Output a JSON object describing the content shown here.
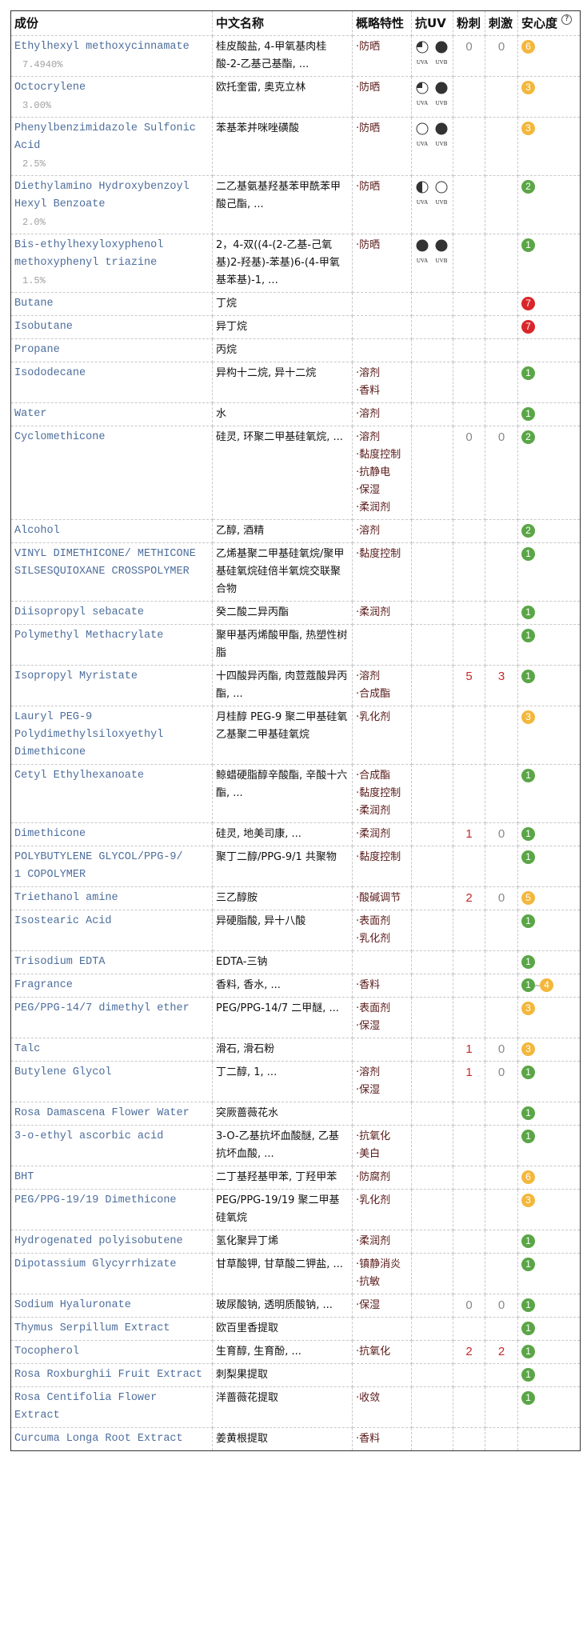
{
  "headers": {
    "ingredient": "成份",
    "cn_name": "中文名称",
    "properties": "概略特性",
    "uv": "抗UV",
    "acne": "粉刺",
    "irritation": "刺激",
    "safety": "安心度",
    "help": "?"
  },
  "uv_labels": {
    "uva": "UVA",
    "uvb": "UVB"
  },
  "colors": {
    "safe_green": "#5aa646",
    "moderate_yellow": "#f3b73d",
    "high_red": "#d9262a",
    "ingredient_blue": "#4d6e9c",
    "property_brown": "#5a1a1a",
    "irritant_red": "#c8282d"
  },
  "rows": [
    {
      "name": "Ethylhexyl methoxycinnamate",
      "pct": "7.4940%",
      "cn": "桂皮酸盐, 4-甲氧基肉桂酸-2-乙基己基酯, ...",
      "props": [
        "防晒"
      ],
      "uva": "quarter",
      "uvb": "full",
      "acne": "0",
      "irr": "0",
      "safety": "6"
    },
    {
      "name": "Octocrylene",
      "pct": "3.00%",
      "cn": "欧托奎雷, 奥克立林",
      "props": [
        "防晒"
      ],
      "uva": "quarter",
      "uvb": "full",
      "safety": "3"
    },
    {
      "name": "Phenylbenzimidazole Sulfonic Acid",
      "pct": "2.5%",
      "cn": "苯基苯并咪唑磺酸",
      "props": [
        "防晒"
      ],
      "uva": "empty",
      "uvb": "full",
      "safety": "3"
    },
    {
      "name": "Diethylamino Hydroxybenzoyl Hexyl Benzoate",
      "pct": "2.0%",
      "cn": "二乙基氨基羟基苯甲酰苯甲酸己酯, ...",
      "props": [
        "防晒"
      ],
      "uva": "half",
      "uvb": "empty",
      "safety": "2"
    },
    {
      "name": "Bis-ethylhexyloxyphenol methoxyphenyl triazine",
      "pct": "1.5%",
      "cn": "2，4-双((4-(2-乙基-己氧基)2-羟基)-苯基)6-(4-甲氧基苯基)-1, ...",
      "props": [
        "防晒"
      ],
      "uva": "full",
      "uvb": "full",
      "safety": "1"
    },
    {
      "name": "Butane",
      "cn": "丁烷",
      "props": [],
      "safety": "7"
    },
    {
      "name": "Isobutane",
      "cn": "异丁烷",
      "props": [],
      "safety": "7"
    },
    {
      "name": "Propane",
      "cn": "丙烷",
      "props": []
    },
    {
      "name": "Isododecane",
      "cn": "异构十二烷, 异十二烷",
      "props": [
        "溶剂",
        "香料"
      ],
      "safety": "1"
    },
    {
      "name": "Water",
      "cn": "水",
      "props": [
        "溶剂"
      ],
      "safety": "1"
    },
    {
      "name": "Cyclomethicone",
      "cn": "硅灵, 环聚二甲基硅氧烷, ...",
      "props": [
        "溶剂",
        "黏度控制",
        "抗静电",
        "保湿",
        "柔润剂"
      ],
      "acne": "0",
      "irr": "0",
      "safety": "2"
    },
    {
      "name": "Alcohol",
      "cn": "乙醇, 酒精",
      "props": [
        "溶剂"
      ],
      "safety": "2"
    },
    {
      "name": "VINYL DIMETHICONE/ METHICONE SILSESQUIOXANE CROSSPOLYMER",
      "cn": "乙烯基聚二甲基硅氧烷/聚甲基硅氧烷硅倍半氧烷交联聚合物",
      "props": [
        "黏度控制"
      ],
      "safety": "1"
    },
    {
      "name": "Diisopropyl sebacate",
      "cn": "癸二酸二异丙酯",
      "props": [
        "柔润剂"
      ],
      "safety": "1"
    },
    {
      "name": "Polymethyl Methacrylate",
      "cn": "聚甲基丙烯酸甲酯, 热塑性树脂",
      "props": [],
      "safety": "1"
    },
    {
      "name": "Isopropyl Myristate",
      "cn": "十四酸异丙酯, 肉荳蔻酸异丙酯, ...",
      "props": [
        "溶剂",
        "合成酯"
      ],
      "acne": "5",
      "irr": "3",
      "safety": "1"
    },
    {
      "name": "Lauryl PEG-9 Polydimethylsiloxyethyl Dimethicone",
      "cn": "月桂醇 PEG-9 聚二甲基硅氧乙基聚二甲基硅氧烷",
      "props": [
        "乳化剂"
      ],
      "safety": "3"
    },
    {
      "name": "Cetyl Ethylhexanoate",
      "cn": "鲸蜡硬脂醇辛酸酯, 辛酸十六酯, ...",
      "props": [
        "合成酯",
        "黏度控制",
        "柔润剂"
      ],
      "safety": "1"
    },
    {
      "name": "Dimethicone",
      "cn": "硅灵, 地美司康, ...",
      "props": [
        "柔润剂"
      ],
      "acne": "1",
      "irr": "0",
      "safety": "1"
    },
    {
      "name": "POLYBUTYLENE GLYCOL/PPG-9/\n1 COPOLYMER",
      "cn": "聚丁二醇/PPG-9/1 共聚物",
      "props": [
        "黏度控制"
      ],
      "safety": "1"
    },
    {
      "name": "Triethanol amine",
      "cn": "三乙醇胺",
      "props": [
        "酸碱调节"
      ],
      "acne": "2",
      "irr": "0",
      "safety": "5"
    },
    {
      "name": "Isostearic Acid",
      "cn": "异硬脂酸, 异十八酸",
      "props": [
        "表面剂",
        "乳化剂"
      ],
      "safety": "1"
    },
    {
      "name": "Trisodium EDTA",
      "cn": "EDTA-三钠",
      "props": [],
      "safety": "1"
    },
    {
      "name": "Fragrance",
      "cn": "香料, 香水, ...",
      "props": [
        "香料"
      ],
      "safety": "1",
      "safety_max": "4",
      "range_sep": "~"
    },
    {
      "name": "PEG/PPG-14/7 dimethyl ether",
      "cn": "PEG/PPG-14/7 二甲醚, ...",
      "props": [
        "表面剂",
        "保湿"
      ],
      "safety": "3"
    },
    {
      "name": "Talc",
      "cn": "滑石, 滑石粉",
      "props": [],
      "acne": "1",
      "irr": "0",
      "safety": "3"
    },
    {
      "name": "Butylene Glycol",
      "cn": "丁二醇, 1, ...",
      "props": [
        "溶剂",
        "保湿"
      ],
      "acne": "1",
      "irr": "0",
      "safety": "1"
    },
    {
      "name": "Rosa Damascena Flower Water",
      "cn": "突厥蔷薇花水",
      "props": [],
      "safety": "1"
    },
    {
      "name": "3-o-ethyl ascorbic acid",
      "cn": "3-O-乙基抗坏血酸醚, 乙基抗坏血酸, ...",
      "props": [
        "抗氧化",
        "美白"
      ],
      "safety": "1"
    },
    {
      "name": "BHT",
      "cn": "二丁基羟基甲苯, 丁羟甲苯",
      "props": [
        "防腐剂"
      ],
      "safety": "6"
    },
    {
      "name": "PEG/PPG-19/19 Dimethicone",
      "cn": "PEG/PPG-19/19 聚二甲基硅氧烷",
      "props": [
        "乳化剂"
      ],
      "safety": "3"
    },
    {
      "name": "Hydrogenated polyisobutene",
      "cn": "氢化聚异丁烯",
      "props": [
        "柔润剂"
      ],
      "safety": "1"
    },
    {
      "name": "Dipotassium Glycyrrhizate",
      "cn": "甘草酸钾, 甘草酸二钾盐, ...",
      "props": [
        "镇静消炎",
        "抗敏"
      ],
      "safety": "1"
    },
    {
      "name": "Sodium Hyaluronate",
      "cn": "玻尿酸钠, 透明质酸钠, ...",
      "props": [
        "保湿"
      ],
      "acne": "0",
      "irr": "0",
      "safety": "1"
    },
    {
      "name": "Thymus Serpillum Extract",
      "cn": "欧百里香提取",
      "props": [],
      "safety": "1"
    },
    {
      "name": "Tocopherol",
      "cn": "生育醇, 生育酚, ...",
      "props": [
        "抗氧化"
      ],
      "acne": "2",
      "irr": "2",
      "safety": "1"
    },
    {
      "name": "Rosa Roxburghii Fruit Extract",
      "cn": "刺梨果提取",
      "props": [],
      "safety": "1"
    },
    {
      "name": "Rosa Centifolia Flower Extract",
      "cn": "洋蔷薇花提取",
      "props": [
        "收敛"
      ],
      "safety": "1"
    },
    {
      "name": "Curcuma Longa Root Extract",
      "cn": "姜黄根提取",
      "props": [
        "香料"
      ]
    }
  ]
}
